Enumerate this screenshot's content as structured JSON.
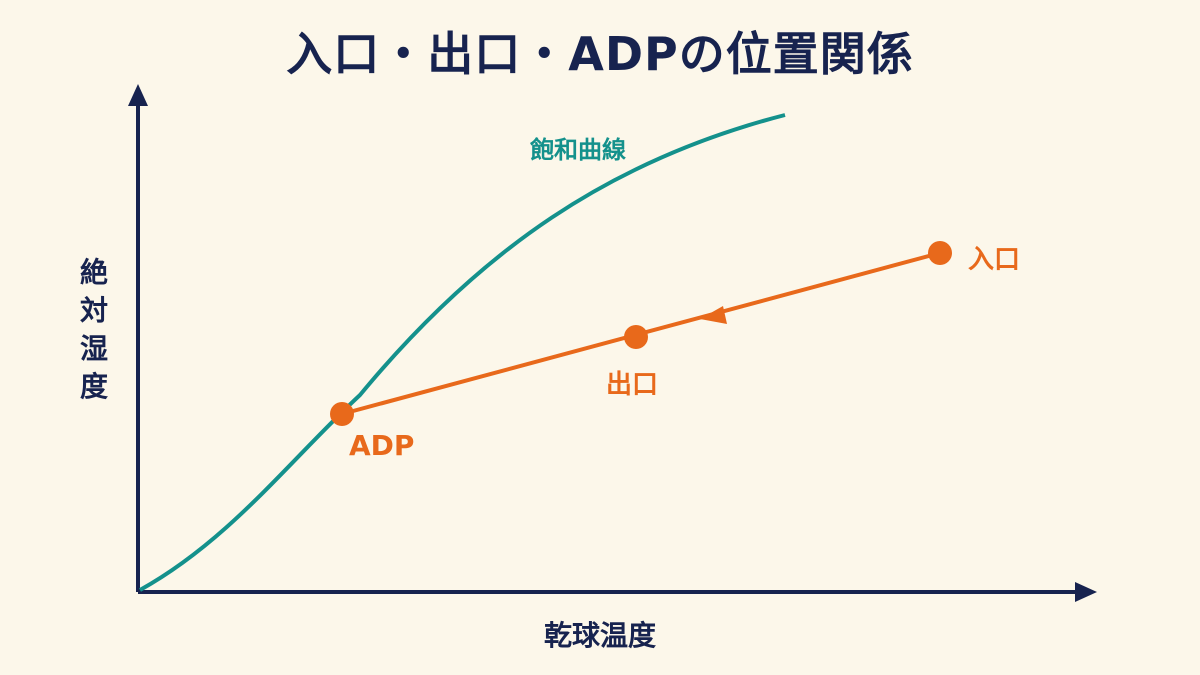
{
  "title": "入口・出口・ADPの位置関係",
  "axes": {
    "x_label": "乾球温度",
    "y_label": "絶対湿度"
  },
  "curve": {
    "label": "飽和曲線"
  },
  "points": {
    "inlet": "入口",
    "outlet": "出口",
    "adp": "ADP"
  },
  "colors": {
    "navy": "#17234f",
    "teal": "#14918c",
    "orange": "#e8691b",
    "background": "#fcf7ea"
  }
}
